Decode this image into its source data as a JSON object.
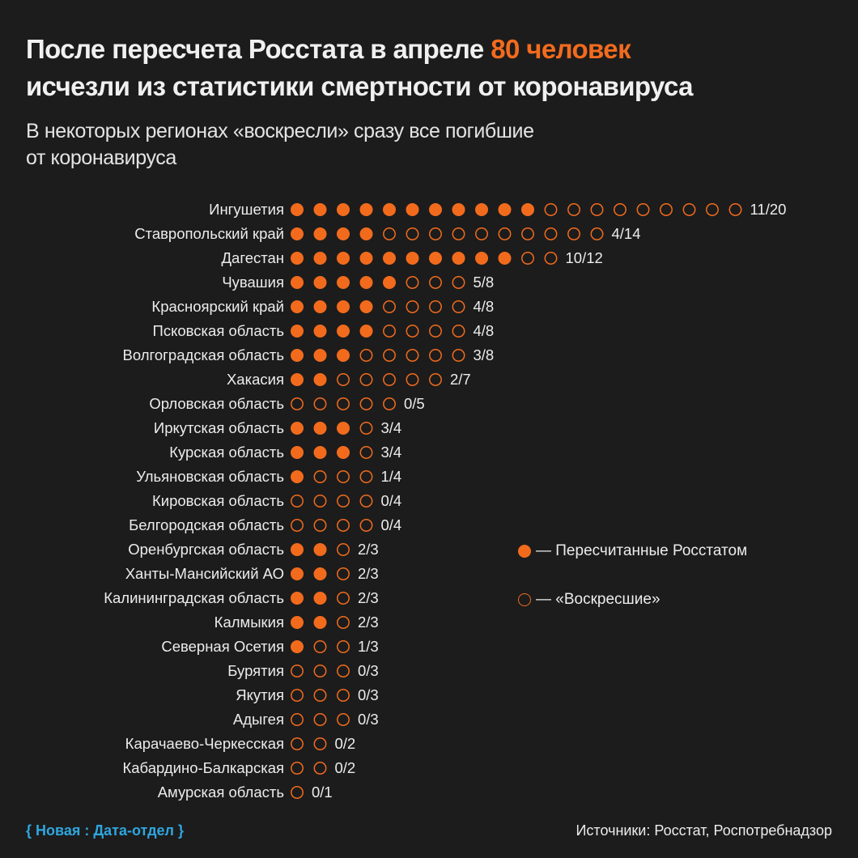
{
  "title": {
    "part1": "После пересчета Росстата в апреле ",
    "highlight": "80 человек",
    "line2": "исчезли из статистики смертности от коронавируса"
  },
  "subtitle": {
    "line1": "В некоторых регионах «воскресли» сразу все погибшие",
    "line2": "от коронавируса"
  },
  "legend": {
    "filled": "— Пересчитанные Росстатом",
    "empty": "— «Воскресшие»"
  },
  "footer": {
    "logo": "{ Новая : Дата-отдел }",
    "source": "Источники: Росстат, Роспотребнадзор"
  },
  "colors": {
    "accent": "#f26b1d",
    "background": "#1c1c1c",
    "logo": "#2fa6df"
  },
  "chart_data": {
    "type": "dot-matrix",
    "series": [
      {
        "name": "Пересчитанные Росстатом"
      },
      {
        "name": "«Воскресшие»"
      }
    ],
    "rows": [
      {
        "region": "Ингушетия",
        "recounted": 11,
        "total": 20,
        "label": "11/20"
      },
      {
        "region": "Ставропольский край",
        "recounted": 4,
        "total": 14,
        "label": "4/14"
      },
      {
        "region": "Дагестан",
        "recounted": 10,
        "total": 12,
        "label": "10/12"
      },
      {
        "region": "Чувашия",
        "recounted": 5,
        "total": 8,
        "label": "5/8"
      },
      {
        "region": "Красноярский край",
        "recounted": 4,
        "total": 8,
        "label": "4/8"
      },
      {
        "region": "Псковская область",
        "recounted": 4,
        "total": 8,
        "label": "4/8"
      },
      {
        "region": "Волгоградская область",
        "recounted": 3,
        "total": 8,
        "label": "3/8"
      },
      {
        "region": "Хакасия",
        "recounted": 2,
        "total": 7,
        "label": "2/7"
      },
      {
        "region": "Орловская область",
        "recounted": 0,
        "total": 5,
        "label": "0/5"
      },
      {
        "region": "Иркутская область",
        "recounted": 3,
        "total": 4,
        "label": "3/4"
      },
      {
        "region": "Курская область",
        "recounted": 3,
        "total": 4,
        "label": "3/4"
      },
      {
        "region": "Ульяновская область",
        "recounted": 1,
        "total": 4,
        "label": "1/4"
      },
      {
        "region": "Кировская область",
        "recounted": 0,
        "total": 4,
        "label": "0/4"
      },
      {
        "region": "Белгородская область",
        "recounted": 0,
        "total": 4,
        "label": "0/4"
      },
      {
        "region": "Оренбургская область",
        "recounted": 2,
        "total": 3,
        "label": "2/3"
      },
      {
        "region": "Ханты-Мансийский АО",
        "recounted": 2,
        "total": 3,
        "label": "2/3"
      },
      {
        "region": "Калининградская область",
        "recounted": 2,
        "total": 3,
        "label": "2/3"
      },
      {
        "region": "Калмыкия",
        "recounted": 2,
        "total": 3,
        "label": "2/3"
      },
      {
        "region": "Северная Осетия",
        "recounted": 1,
        "total": 3,
        "label": "1/3"
      },
      {
        "region": "Бурятия",
        "recounted": 0,
        "total": 3,
        "label": "0/3"
      },
      {
        "region": "Якутия",
        "recounted": 0,
        "total": 3,
        "label": "0/3"
      },
      {
        "region": "Адыгея",
        "recounted": 0,
        "total": 3,
        "label": "0/3"
      },
      {
        "region": "Карачаево-Черкесская",
        "recounted": 0,
        "total": 2,
        "label": "0/2"
      },
      {
        "region": "Кабардино-Балкарская",
        "recounted": 0,
        "total": 2,
        "label": "0/2"
      },
      {
        "region": "Амурская область",
        "recounted": 0,
        "total": 1,
        "label": "0/1"
      }
    ]
  }
}
